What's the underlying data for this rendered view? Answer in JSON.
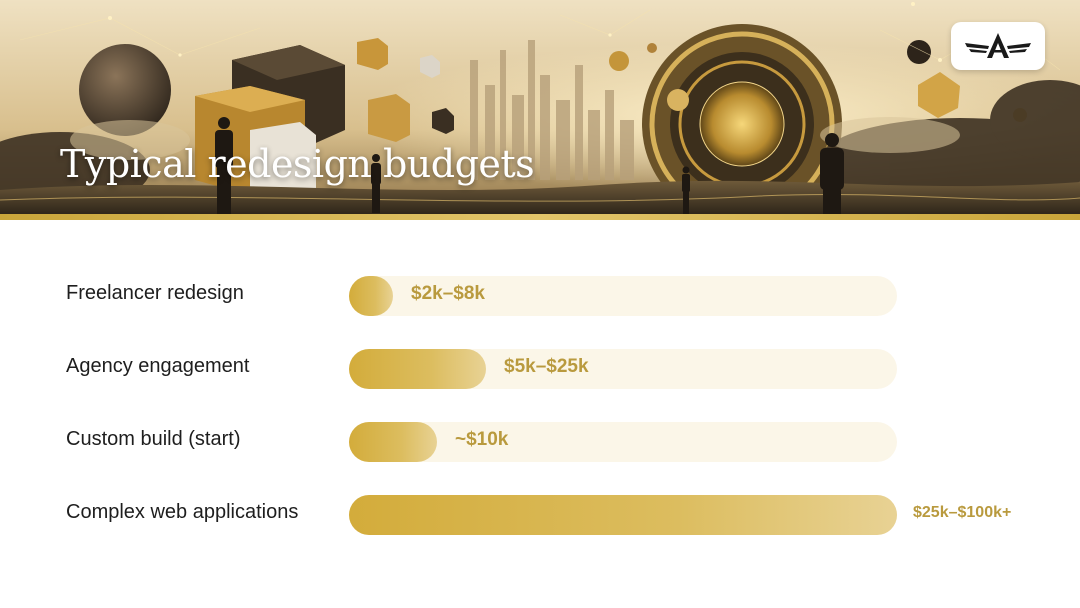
{
  "slide": {
    "title": "Typical redesign budgets"
  },
  "colors": {
    "bar_fill": "#d3ac3b",
    "bar_track": "#fbf6e8",
    "value_text": "#b99a3e",
    "label_text": "#1e1e1e",
    "accent_rule": "#c9a53a"
  },
  "logo": {
    "icon": "winged-a-logo-icon"
  },
  "chart_data": {
    "type": "bar",
    "orientation": "horizontal",
    "categories": [
      "Freelancer redesign",
      "Agency engagement",
      "Custom build (start)",
      "Complex web applications"
    ],
    "values": [
      8,
      25,
      16,
      100
    ],
    "value_labels": [
      "$2k–$8k",
      "$5k–$25k",
      "~$10k",
      "$25k–$100k+"
    ],
    "xlim": [
      0,
      100
    ],
    "grid": false,
    "legend": "none"
  }
}
